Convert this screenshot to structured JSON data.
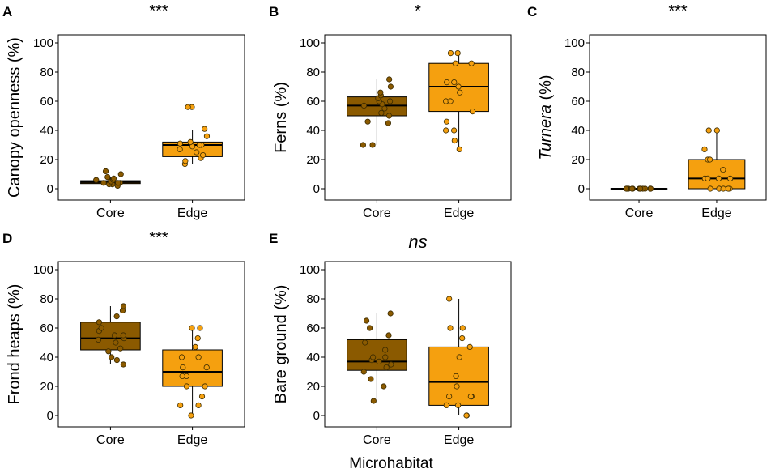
{
  "figure": {
    "x_axis_title": "Microhabitat"
  },
  "colors": {
    "core": "#8B5A00",
    "edge": "#F5A00F",
    "outline": "#000000"
  },
  "chart_data": [
    {
      "type": "box",
      "panel": "A",
      "significance": "***",
      "ylabel": "Canopy openness (%)",
      "ylabel_italic_prefix": "",
      "ylim": [
        0,
        100
      ],
      "yticks": [
        0,
        20,
        40,
        60,
        80,
        100
      ],
      "categories": [
        "Core",
        "Edge"
      ],
      "series": [
        {
          "name": "Core",
          "q1": 3.5,
          "median": 4.5,
          "q3": 5.5,
          "whisker_low": 2,
          "whisker_high": 8,
          "points": [
            2,
            3,
            3,
            4,
            4,
            4,
            5,
            5,
            5,
            6,
            6,
            7,
            8,
            10,
            12
          ]
        },
        {
          "name": "Edge",
          "q1": 22,
          "median": 30,
          "q3": 32,
          "whisker_low": 17,
          "whisker_high": 40,
          "points": [
            17,
            19,
            21,
            23,
            25,
            27,
            29,
            30,
            30,
            31,
            32,
            36,
            41,
            56,
            56
          ]
        }
      ]
    },
    {
      "type": "box",
      "panel": "B",
      "significance": "*",
      "ylabel": "Ferns (%)",
      "ylabel_italic_prefix": "",
      "ylim": [
        0,
        100
      ],
      "yticks": [
        0,
        20,
        40,
        60,
        80,
        100
      ],
      "categories": [
        "Core",
        "Edge"
      ],
      "series": [
        {
          "name": "Core",
          "q1": 50,
          "median": 57,
          "q3": 63,
          "whisker_low": 30,
          "whisker_high": 75,
          "points": [
            30,
            30,
            45,
            46,
            50,
            52,
            55,
            57,
            58,
            60,
            60,
            62,
            64,
            66,
            70,
            75
          ]
        },
        {
          "name": "Edge",
          "q1": 53,
          "median": 70,
          "q3": 86,
          "whisker_low": 27,
          "whisker_high": 93,
          "points": [
            27,
            33,
            40,
            40,
            46,
            53,
            60,
            60,
            66,
            70,
            73,
            73,
            86,
            86,
            93,
            93
          ]
        }
      ]
    },
    {
      "type": "box",
      "panel": "C",
      "significance": "***",
      "ylabel": " (%)",
      "ylabel_italic_prefix": "Turnera",
      "ylim": [
        0,
        100
      ],
      "yticks": [
        0,
        20,
        40,
        60,
        80,
        100
      ],
      "categories": [
        "Core",
        "Edge"
      ],
      "series": [
        {
          "name": "Core",
          "q1": 0,
          "median": 0,
          "q3": 0,
          "whisker_low": 0,
          "whisker_high": 0,
          "points": [
            0,
            0,
            0,
            0,
            0,
            0,
            0,
            0,
            0,
            0,
            0,
            0,
            0,
            0,
            0
          ]
        },
        {
          "name": "Edge",
          "q1": 0,
          "median": 7,
          "q3": 20,
          "whisker_low": 0,
          "whisker_high": 40,
          "points": [
            0,
            0,
            0,
            0,
            0,
            7,
            7,
            7,
            7,
            13,
            20,
            20,
            20,
            27,
            40,
            40
          ]
        }
      ]
    },
    {
      "type": "box",
      "panel": "D",
      "significance": "***",
      "ylabel": "Frond heaps (%)",
      "ylabel_italic_prefix": "",
      "ylim": [
        0,
        100
      ],
      "yticks": [
        0,
        20,
        40,
        60,
        80,
        100
      ],
      "categories": [
        "Core",
        "Edge"
      ],
      "series": [
        {
          "name": "Core",
          "q1": 45,
          "median": 53,
          "q3": 64,
          "whisker_low": 35,
          "whisker_high": 75,
          "points": [
            35,
            38,
            40,
            44,
            46,
            50,
            52,
            53,
            55,
            55,
            58,
            60,
            64,
            68,
            72,
            75
          ]
        },
        {
          "name": "Edge",
          "q1": 20,
          "median": 30,
          "q3": 45,
          "whisker_low": 0,
          "whisker_high": 60,
          "points": [
            0,
            7,
            7,
            13,
            20,
            20,
            27,
            27,
            33,
            33,
            40,
            40,
            47,
            53,
            60,
            60
          ]
        }
      ]
    },
    {
      "type": "box",
      "panel": "E",
      "significance": "ns",
      "ylabel": "Bare ground (%)",
      "ylabel_italic_prefix": "",
      "ylim": [
        0,
        100
      ],
      "yticks": [
        0,
        20,
        40,
        60,
        80,
        100
      ],
      "categories": [
        "Core",
        "Edge"
      ],
      "series": [
        {
          "name": "Core",
          "q1": 31,
          "median": 37,
          "q3": 52,
          "whisker_low": 10,
          "whisker_high": 70,
          "points": [
            10,
            20,
            25,
            30,
            33,
            35,
            37,
            38,
            40,
            40,
            45,
            50,
            55,
            60,
            65,
            70
          ]
        },
        {
          "name": "Edge",
          "q1": 7,
          "median": 23,
          "q3": 47,
          "whisker_low": 0,
          "whisker_high": 80,
          "points": [
            0,
            0,
            7,
            7,
            13,
            13,
            13,
            20,
            27,
            40,
            47,
            53,
            60,
            60,
            80
          ]
        }
      ]
    }
  ]
}
